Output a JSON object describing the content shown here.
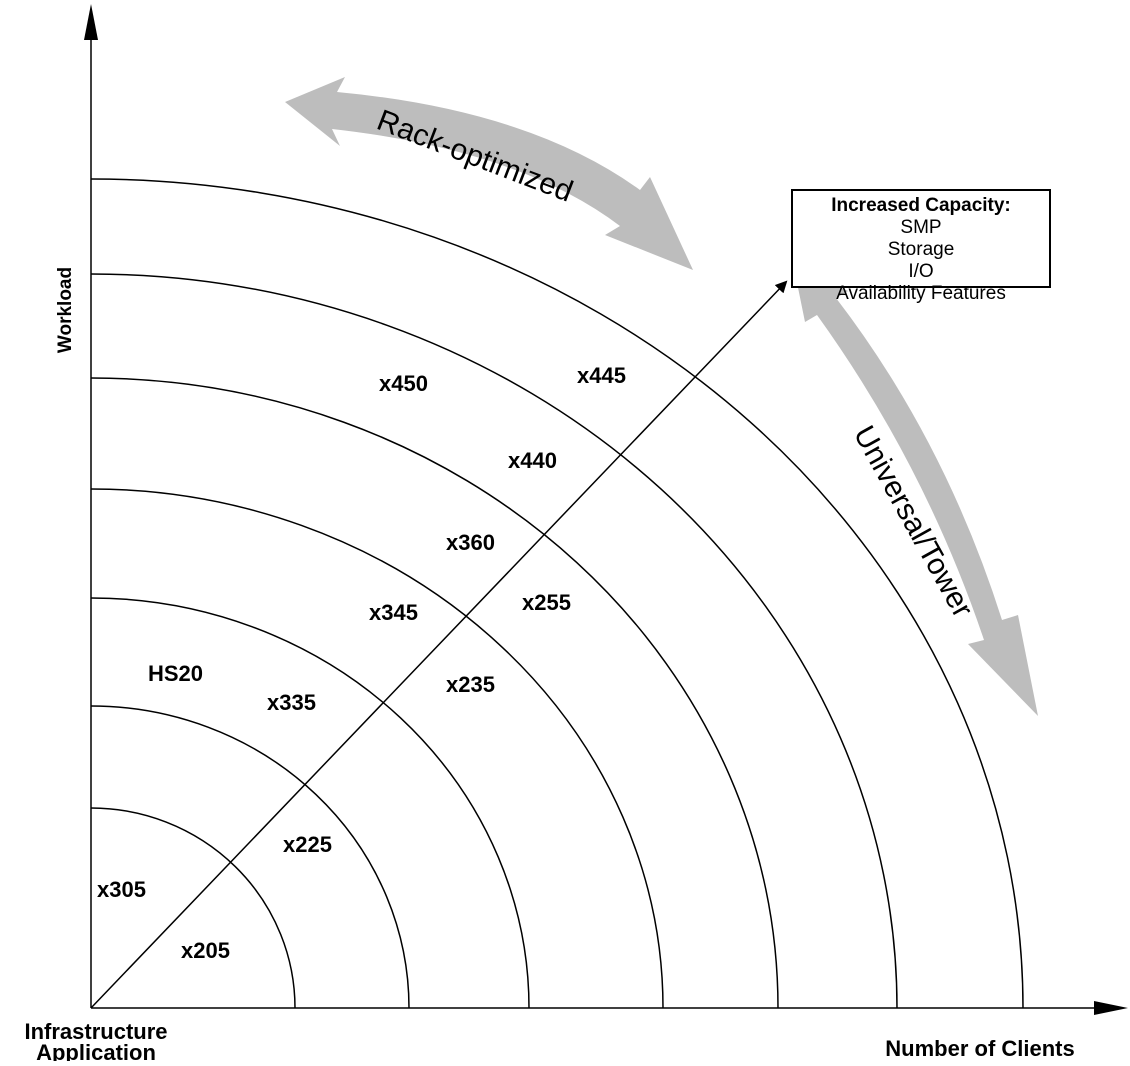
{
  "axes": {
    "y_label": "Workload",
    "x_label": "Number of Clients",
    "origin_label_line1": "Infrastructure",
    "origin_label_line2": "Application"
  },
  "arrows": {
    "rack": "Rack-optimized",
    "universal": "Universal/Tower"
  },
  "capacity_box": {
    "title": "Increased Capacity:",
    "items": [
      "SMP",
      "Storage",
      "I/O",
      "Availability Features"
    ]
  },
  "servers": [
    "x305",
    "x205",
    "x225",
    "HS20",
    "x335",
    "x345",
    "x235",
    "x360",
    "x255",
    "x450",
    "x440",
    "x445"
  ],
  "colors": {
    "line": "#000000",
    "arrow_fill": "#bdbdbd"
  }
}
